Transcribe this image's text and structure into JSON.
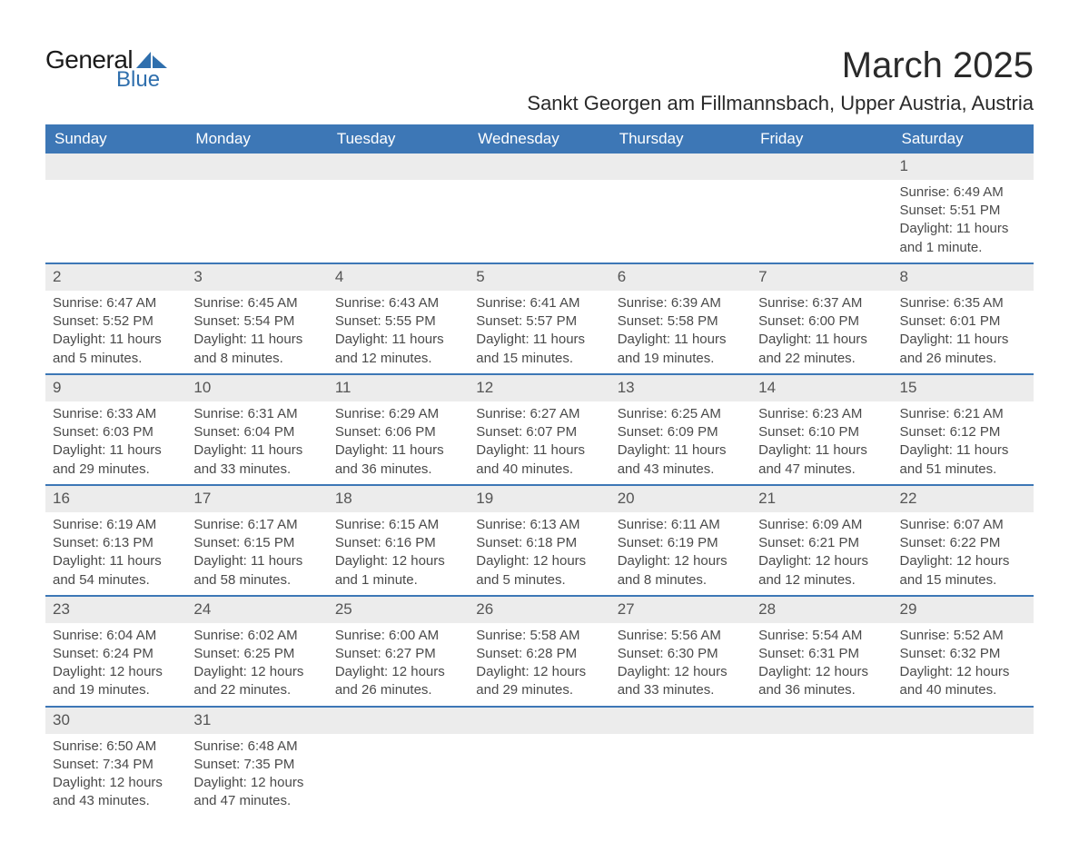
{
  "brand": {
    "general": "General",
    "blue": "Blue",
    "logo_color": "#2f6fad"
  },
  "header": {
    "month_title": "March 2025",
    "location": "Sankt Georgen am Fillmannsbach, Upper Austria, Austria"
  },
  "calendar": {
    "header_bg": "#3d77b6",
    "header_fg": "#ffffff",
    "daynum_bg": "#ececec",
    "border_color": "#3d77b6",
    "columns": [
      "Sunday",
      "Monday",
      "Tuesday",
      "Wednesday",
      "Thursday",
      "Friday",
      "Saturday"
    ],
    "weeks": [
      [
        {
          "empty": true
        },
        {
          "empty": true
        },
        {
          "empty": true
        },
        {
          "empty": true
        },
        {
          "empty": true
        },
        {
          "empty": true
        },
        {
          "num": "1",
          "sunrise": "Sunrise: 6:49 AM",
          "sunset": "Sunset: 5:51 PM",
          "daylight1": "Daylight: 11 hours",
          "daylight2": "and 1 minute."
        }
      ],
      [
        {
          "num": "2",
          "sunrise": "Sunrise: 6:47 AM",
          "sunset": "Sunset: 5:52 PM",
          "daylight1": "Daylight: 11 hours",
          "daylight2": "and 5 minutes."
        },
        {
          "num": "3",
          "sunrise": "Sunrise: 6:45 AM",
          "sunset": "Sunset: 5:54 PM",
          "daylight1": "Daylight: 11 hours",
          "daylight2": "and 8 minutes."
        },
        {
          "num": "4",
          "sunrise": "Sunrise: 6:43 AM",
          "sunset": "Sunset: 5:55 PM",
          "daylight1": "Daylight: 11 hours",
          "daylight2": "and 12 minutes."
        },
        {
          "num": "5",
          "sunrise": "Sunrise: 6:41 AM",
          "sunset": "Sunset: 5:57 PM",
          "daylight1": "Daylight: 11 hours",
          "daylight2": "and 15 minutes."
        },
        {
          "num": "6",
          "sunrise": "Sunrise: 6:39 AM",
          "sunset": "Sunset: 5:58 PM",
          "daylight1": "Daylight: 11 hours",
          "daylight2": "and 19 minutes."
        },
        {
          "num": "7",
          "sunrise": "Sunrise: 6:37 AM",
          "sunset": "Sunset: 6:00 PM",
          "daylight1": "Daylight: 11 hours",
          "daylight2": "and 22 minutes."
        },
        {
          "num": "8",
          "sunrise": "Sunrise: 6:35 AM",
          "sunset": "Sunset: 6:01 PM",
          "daylight1": "Daylight: 11 hours",
          "daylight2": "and 26 minutes."
        }
      ],
      [
        {
          "num": "9",
          "sunrise": "Sunrise: 6:33 AM",
          "sunset": "Sunset: 6:03 PM",
          "daylight1": "Daylight: 11 hours",
          "daylight2": "and 29 minutes."
        },
        {
          "num": "10",
          "sunrise": "Sunrise: 6:31 AM",
          "sunset": "Sunset: 6:04 PM",
          "daylight1": "Daylight: 11 hours",
          "daylight2": "and 33 minutes."
        },
        {
          "num": "11",
          "sunrise": "Sunrise: 6:29 AM",
          "sunset": "Sunset: 6:06 PM",
          "daylight1": "Daylight: 11 hours",
          "daylight2": "and 36 minutes."
        },
        {
          "num": "12",
          "sunrise": "Sunrise: 6:27 AM",
          "sunset": "Sunset: 6:07 PM",
          "daylight1": "Daylight: 11 hours",
          "daylight2": "and 40 minutes."
        },
        {
          "num": "13",
          "sunrise": "Sunrise: 6:25 AM",
          "sunset": "Sunset: 6:09 PM",
          "daylight1": "Daylight: 11 hours",
          "daylight2": "and 43 minutes."
        },
        {
          "num": "14",
          "sunrise": "Sunrise: 6:23 AM",
          "sunset": "Sunset: 6:10 PM",
          "daylight1": "Daylight: 11 hours",
          "daylight2": "and 47 minutes."
        },
        {
          "num": "15",
          "sunrise": "Sunrise: 6:21 AM",
          "sunset": "Sunset: 6:12 PM",
          "daylight1": "Daylight: 11 hours",
          "daylight2": "and 51 minutes."
        }
      ],
      [
        {
          "num": "16",
          "sunrise": "Sunrise: 6:19 AM",
          "sunset": "Sunset: 6:13 PM",
          "daylight1": "Daylight: 11 hours",
          "daylight2": "and 54 minutes."
        },
        {
          "num": "17",
          "sunrise": "Sunrise: 6:17 AM",
          "sunset": "Sunset: 6:15 PM",
          "daylight1": "Daylight: 11 hours",
          "daylight2": "and 58 minutes."
        },
        {
          "num": "18",
          "sunrise": "Sunrise: 6:15 AM",
          "sunset": "Sunset: 6:16 PM",
          "daylight1": "Daylight: 12 hours",
          "daylight2": "and 1 minute."
        },
        {
          "num": "19",
          "sunrise": "Sunrise: 6:13 AM",
          "sunset": "Sunset: 6:18 PM",
          "daylight1": "Daylight: 12 hours",
          "daylight2": "and 5 minutes."
        },
        {
          "num": "20",
          "sunrise": "Sunrise: 6:11 AM",
          "sunset": "Sunset: 6:19 PM",
          "daylight1": "Daylight: 12 hours",
          "daylight2": "and 8 minutes."
        },
        {
          "num": "21",
          "sunrise": "Sunrise: 6:09 AM",
          "sunset": "Sunset: 6:21 PM",
          "daylight1": "Daylight: 12 hours",
          "daylight2": "and 12 minutes."
        },
        {
          "num": "22",
          "sunrise": "Sunrise: 6:07 AM",
          "sunset": "Sunset: 6:22 PM",
          "daylight1": "Daylight: 12 hours",
          "daylight2": "and 15 minutes."
        }
      ],
      [
        {
          "num": "23",
          "sunrise": "Sunrise: 6:04 AM",
          "sunset": "Sunset: 6:24 PM",
          "daylight1": "Daylight: 12 hours",
          "daylight2": "and 19 minutes."
        },
        {
          "num": "24",
          "sunrise": "Sunrise: 6:02 AM",
          "sunset": "Sunset: 6:25 PM",
          "daylight1": "Daylight: 12 hours",
          "daylight2": "and 22 minutes."
        },
        {
          "num": "25",
          "sunrise": "Sunrise: 6:00 AM",
          "sunset": "Sunset: 6:27 PM",
          "daylight1": "Daylight: 12 hours",
          "daylight2": "and 26 minutes."
        },
        {
          "num": "26",
          "sunrise": "Sunrise: 5:58 AM",
          "sunset": "Sunset: 6:28 PM",
          "daylight1": "Daylight: 12 hours",
          "daylight2": "and 29 minutes."
        },
        {
          "num": "27",
          "sunrise": "Sunrise: 5:56 AM",
          "sunset": "Sunset: 6:30 PM",
          "daylight1": "Daylight: 12 hours",
          "daylight2": "and 33 minutes."
        },
        {
          "num": "28",
          "sunrise": "Sunrise: 5:54 AM",
          "sunset": "Sunset: 6:31 PM",
          "daylight1": "Daylight: 12 hours",
          "daylight2": "and 36 minutes."
        },
        {
          "num": "29",
          "sunrise": "Sunrise: 5:52 AM",
          "sunset": "Sunset: 6:32 PM",
          "daylight1": "Daylight: 12 hours",
          "daylight2": "and 40 minutes."
        }
      ],
      [
        {
          "num": "30",
          "sunrise": "Sunrise: 6:50 AM",
          "sunset": "Sunset: 7:34 PM",
          "daylight1": "Daylight: 12 hours",
          "daylight2": "and 43 minutes."
        },
        {
          "num": "31",
          "sunrise": "Sunrise: 6:48 AM",
          "sunset": "Sunset: 7:35 PM",
          "daylight1": "Daylight: 12 hours",
          "daylight2": "and 47 minutes."
        },
        {
          "empty": true
        },
        {
          "empty": true
        },
        {
          "empty": true
        },
        {
          "empty": true
        },
        {
          "empty": true
        }
      ]
    ]
  }
}
